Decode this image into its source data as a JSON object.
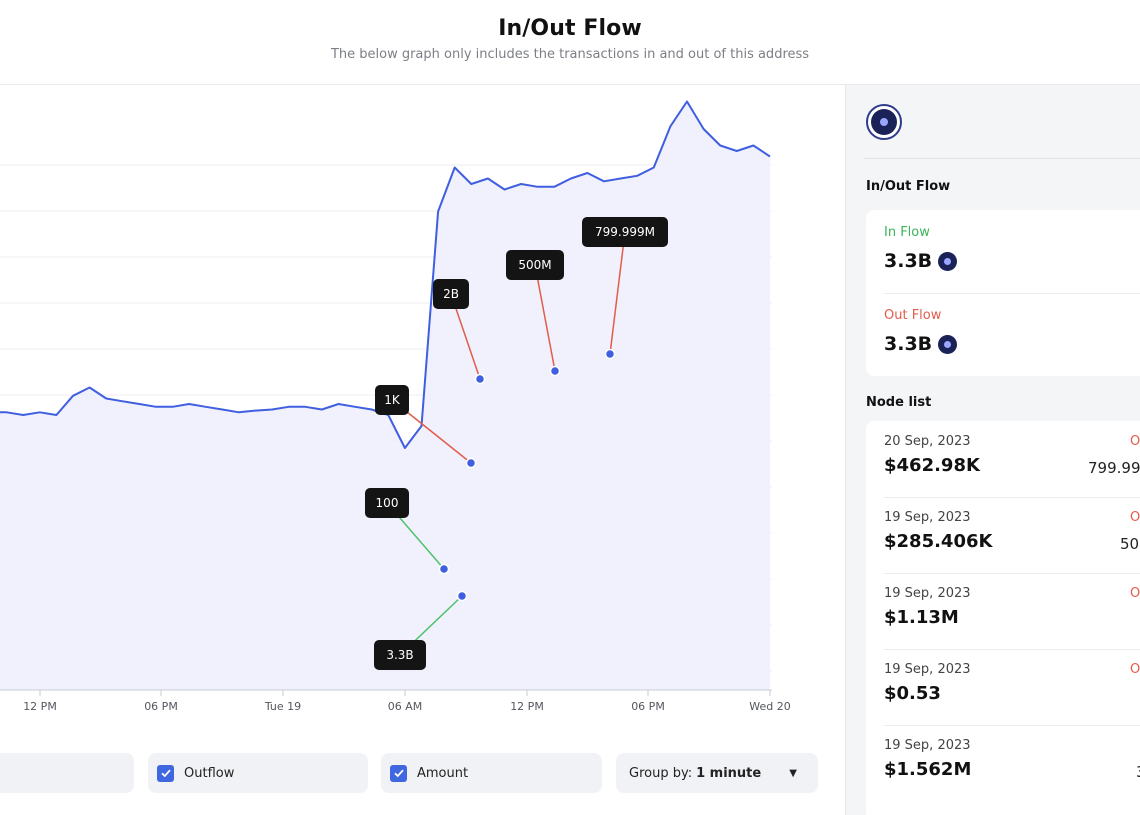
{
  "header": {
    "title": "In/Out Flow",
    "subtitle": "The below graph only includes the transactions in and out of this address"
  },
  "chart_data": {
    "type": "area",
    "x_ticks": [
      "12 PM",
      "06 PM",
      "Tue 19",
      "06 AM",
      "12 PM",
      "06 PM",
      "Wed 20"
    ],
    "series": [
      {
        "values": [
          5.05,
          5.05,
          5.0,
          5.05,
          5.0,
          5.35,
          5.5,
          5.3,
          5.25,
          5.2,
          5.15,
          5.15,
          5.2,
          5.15,
          5.1,
          5.05,
          5.08,
          5.1,
          5.15,
          5.15,
          5.1,
          5.2,
          5.15,
          5.1,
          5.0,
          4.4,
          4.8,
          8.7,
          9.5,
          9.2,
          9.3,
          9.1,
          9.2,
          9.15,
          9.15,
          9.3,
          9.4,
          9.25,
          9.3,
          9.35,
          9.5,
          10.25,
          10.7,
          10.2,
          9.9,
          9.8,
          9.9,
          9.7
        ],
        "color": "#3f5fe0"
      }
    ],
    "annotations": [
      {
        "label": "100",
        "type": "inflow",
        "color": "#4ec26a"
      },
      {
        "label": "3.3B",
        "type": "inflow",
        "color": "#4ec26a"
      },
      {
        "label": "1K",
        "type": "outflow",
        "color": "#e25c4b"
      },
      {
        "label": "2B",
        "type": "outflow",
        "color": "#e25c4b"
      },
      {
        "label": "500M",
        "type": "outflow",
        "color": "#e25c4b"
      },
      {
        "label": "799.999M",
        "type": "outflow",
        "color": "#e25c4b"
      }
    ],
    "grid": true
  },
  "controls": {
    "outflow_label": "Outflow",
    "amount_label": "Amount",
    "group_by_label": "Group by:",
    "group_by_value": "1 minute"
  },
  "sidebar": {
    "flow_section_title": "In/Out Flow",
    "in_flow_label": "In Flow",
    "in_flow_value": "3.3B",
    "out_flow_label": "Out Flow",
    "out_flow_value": "3.3B",
    "node_list_title": "Node list",
    "nodes": [
      {
        "date": "20 Sep, 2023",
        "amount": "$462.98K",
        "side_label": "O",
        "side_value": "799.99"
      },
      {
        "date": "19 Sep, 2023",
        "amount": "$285.406K",
        "side_label": "O",
        "side_value": "50"
      },
      {
        "date": "19 Sep, 2023",
        "amount": "$1.13M",
        "side_label": "O",
        "side_value": ""
      },
      {
        "date": "19 Sep, 2023",
        "amount": "$0.53",
        "side_label": "O",
        "side_value": ""
      },
      {
        "date": "19 Sep, 2023",
        "amount": "$1.562M",
        "side_label": "",
        "side_value": "3"
      }
    ]
  },
  "colors": {
    "accent": "#3f67e0",
    "inflow": "#3bb55a",
    "outflow": "#e25c4b"
  }
}
